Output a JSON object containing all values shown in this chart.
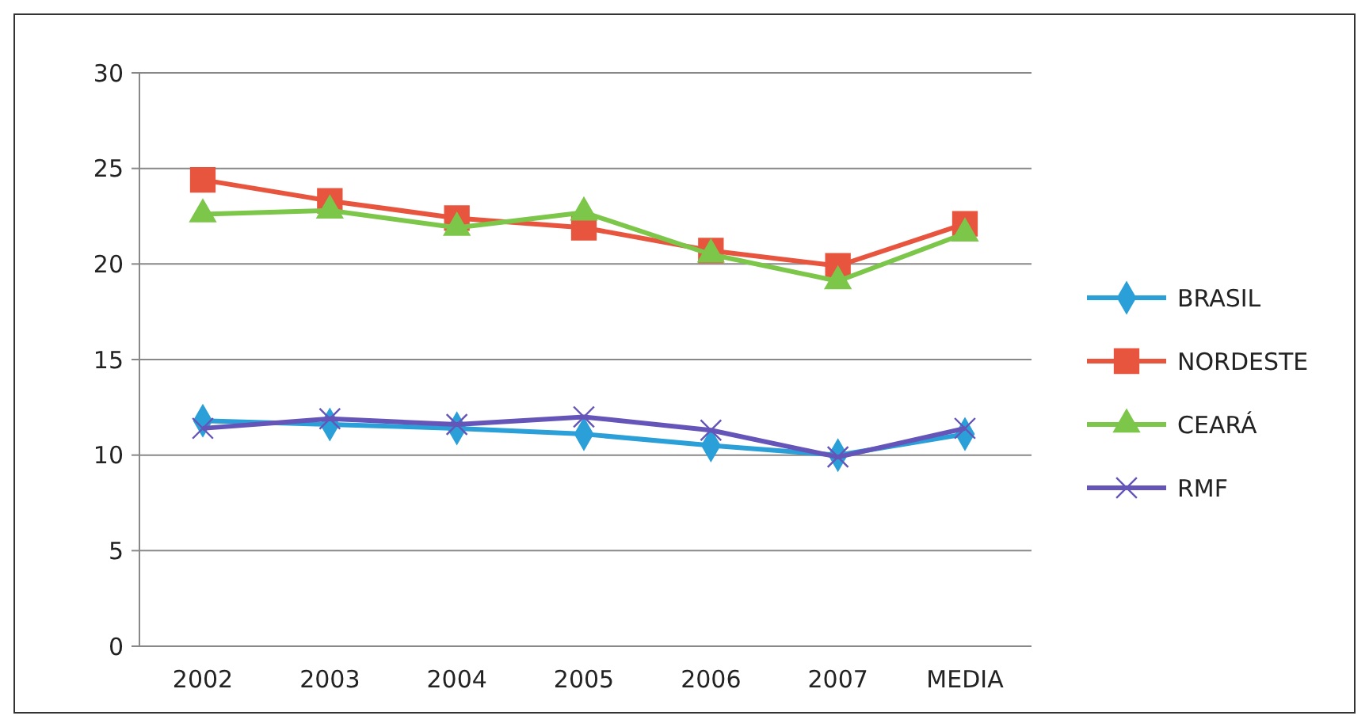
{
  "chart_data": {
    "type": "line",
    "categories": [
      "2002",
      "2003",
      "2004",
      "2005",
      "2006",
      "2007",
      "MEDIA"
    ],
    "ylim": [
      0,
      30
    ],
    "yticks": [
      0,
      5,
      10,
      15,
      20,
      25,
      30
    ],
    "grid": "y",
    "legend": "right",
    "series": [
      {
        "name": "BRASIL",
        "color": "#2a9fd8",
        "marker": "diamond",
        "values": [
          11.8,
          11.6,
          11.4,
          11.1,
          10.5,
          10.0,
          11.1
        ]
      },
      {
        "name": "NORDESTE",
        "color": "#e8553e",
        "marker": "square",
        "values": [
          24.4,
          23.3,
          22.4,
          21.9,
          20.7,
          19.9,
          22.1
        ]
      },
      {
        "name": "CEARÁ",
        "color": "#7cc64a",
        "marker": "triangle",
        "values": [
          22.6,
          22.8,
          21.9,
          22.7,
          20.5,
          19.1,
          21.6
        ]
      },
      {
        "name": "RMF",
        "color": "#6655b8",
        "marker": "cross",
        "values": [
          11.4,
          11.9,
          11.6,
          12.0,
          11.3,
          9.9,
          11.4
        ]
      }
    ]
  }
}
